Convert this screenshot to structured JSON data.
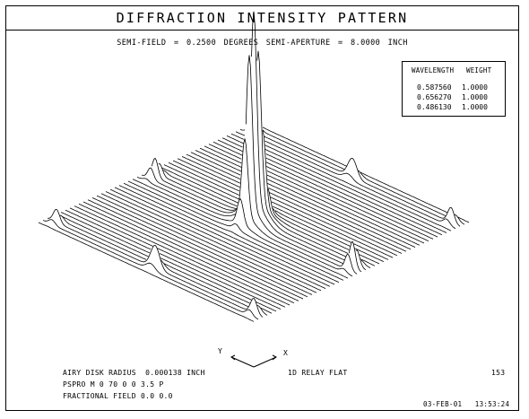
{
  "header": {
    "title": "DIFFRACTION INTENSITY PATTERN",
    "subtitle": "SEMI-FIELD =  0.2500 DEGREES   SEMI-APERTURE =  8.0000 INCH"
  },
  "legend": {
    "col_wavelength": "WAVELENGTH",
    "col_weight": "WEIGHT",
    "rows": [
      {
        "wavelength": "0.587560",
        "weight": "1.0000"
      },
      {
        "wavelength": "0.656270",
        "weight": "1.0000"
      },
      {
        "wavelength": "0.486130",
        "weight": "1.0000"
      }
    ]
  },
  "axes": {
    "x_label": "X",
    "y_label": "Y"
  },
  "footer": {
    "airy": "AIRY DISK RADIUS  0.000138 INCH",
    "pspro": "PSPRO M 0 70 0 0 3.5 P",
    "field": "FRACTIONAL FIELD 0.0 0.0",
    "lens": "1D RELAY FLAT",
    "page": "153",
    "date": "03-FEB-01   13:53:24"
  }
}
